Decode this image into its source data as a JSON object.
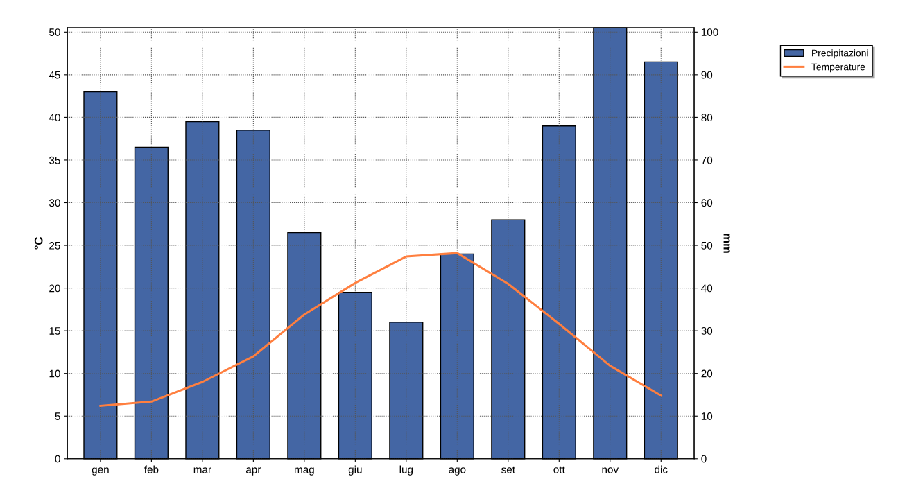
{
  "chart_data": {
    "type": "bar",
    "categories": [
      "gen",
      "feb",
      "mar",
      "apr",
      "mag",
      "giu",
      "lug",
      "ago",
      "set",
      "ott",
      "nov",
      "dic"
    ],
    "ylabel": "°C",
    "y2label": "mm",
    "ylim": [
      0,
      50.5
    ],
    "yticks": [
      0,
      5,
      10,
      15,
      20,
      25,
      30,
      35,
      40,
      45,
      50
    ],
    "y2lim": [
      0,
      101
    ],
    "y2ticks": [
      0,
      10,
      20,
      30,
      40,
      50,
      60,
      70,
      80,
      90,
      100
    ],
    "series": [
      {
        "name": "Precipitazioni",
        "axis": "y2",
        "color": "#4466a4",
        "values": [
          86,
          73,
          79,
          77,
          53,
          39,
          32,
          48,
          56,
          78,
          101,
          93
        ]
      },
      {
        "name": "Temperature",
        "type": "line",
        "axis": "y",
        "color": "#ff7f3f",
        "values": [
          6.2,
          6.7,
          9.0,
          12.0,
          16.9,
          20.6,
          23.7,
          24.1,
          20.5,
          15.8,
          10.9,
          7.4
        ]
      }
    ],
    "grid": true,
    "legend": "top right",
    "marker": "none",
    "line_style": "solid"
  }
}
